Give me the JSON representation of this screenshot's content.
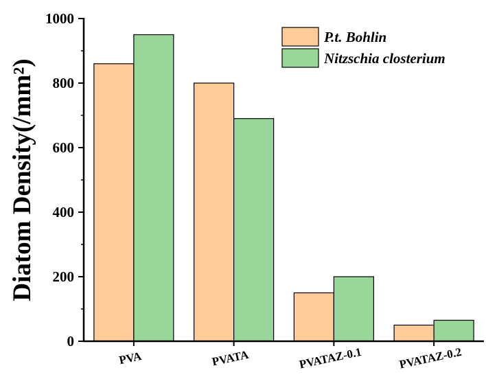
{
  "chart_data": {
    "type": "bar",
    "categories": [
      "PVA",
      "PVATA",
      "PVATAZ-0.1",
      "PVATAZ-0.2"
    ],
    "series": [
      {
        "name": "P.t. Bohlin",
        "values": [
          860,
          800,
          150,
          50
        ],
        "color": "#FFCC99"
      },
      {
        "name": "Nitzschia closterium",
        "values": [
          950,
          690,
          200,
          65
        ],
        "color": "#99D699"
      }
    ],
    "ylabel": "Diatom Density(/mm²)",
    "xlabel": "",
    "ylim": [
      0,
      1000
    ],
    "yticks": [
      "0",
      "200",
      "400",
      "600",
      "800",
      "1000"
    ],
    "legend_position": "top-right",
    "grid": false
  }
}
